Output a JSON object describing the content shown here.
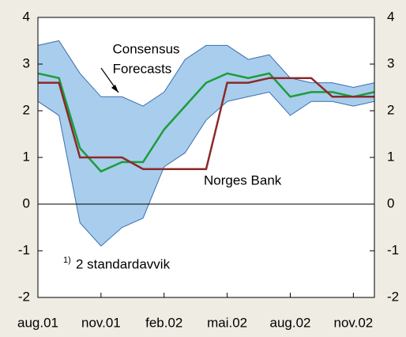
{
  "chart_data": {
    "type": "line",
    "categories": [
      "aug.01",
      null,
      null,
      "nov.01",
      null,
      null,
      "feb.02",
      null,
      null,
      "mai.02",
      null,
      null,
      "aug.02",
      null,
      null,
      "nov.02",
      null
    ],
    "band": {
      "upper": [
        3.4,
        3.5,
        2.8,
        2.3,
        2.3,
        2.1,
        2.4,
        3.1,
        3.4,
        3.4,
        3.1,
        3.2,
        2.7,
        2.6,
        2.6,
        2.5,
        2.6
      ],
      "lower": [
        2.2,
        1.9,
        -0.4,
        -0.9,
        -0.5,
        -0.3,
        0.8,
        1.1,
        1.8,
        2.2,
        2.3,
        2.4,
        1.9,
        2.2,
        2.2,
        2.1,
        2.2
      ],
      "color": "#a9cdec",
      "edge_color": "#3a6fb0"
    },
    "series": [
      {
        "name": "Consensus Forecasts",
        "color": "#1a9e3a",
        "values": [
          2.8,
          2.7,
          1.2,
          0.7,
          0.9,
          0.9,
          1.6,
          2.1,
          2.6,
          2.8,
          2.7,
          2.8,
          2.3,
          2.4,
          2.4,
          2.3,
          2.4
        ]
      },
      {
        "name": "Norges Bank",
        "color": "#8b2a2a",
        "values": [
          2.6,
          2.6,
          1.0,
          1.0,
          1.0,
          0.75,
          0.75,
          0.75,
          0.75,
          2.6,
          2.6,
          2.7,
          2.7,
          2.7,
          2.3,
          2.3,
          2.3
        ]
      }
    ],
    "annotations": {
      "consensus": [
        "Consensus",
        "Forecasts"
      ],
      "norges_bank": "Norges Bank",
      "footnote_mark": "1)",
      "footnote": "2 standardavvik"
    },
    "ylim": [
      -2,
      4
    ],
    "yticks": [
      -2,
      -1,
      0,
      1,
      2,
      3,
      4
    ],
    "y2lim": [
      -2,
      4
    ],
    "y2ticks": [
      -2,
      -1,
      0,
      1,
      2,
      3,
      4
    ]
  }
}
